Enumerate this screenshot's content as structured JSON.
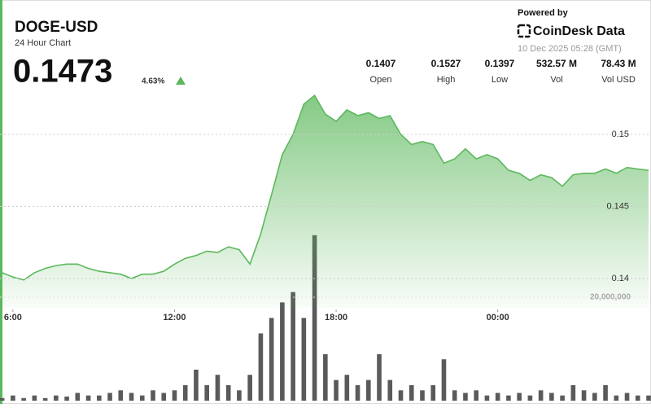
{
  "header": {
    "symbol": "DOGE-USD",
    "subtitle": "24 Hour Chart",
    "price": "0.1473",
    "change": "4.63%",
    "powered_by": "Powered by",
    "brand": "CoinDesk Data",
    "timestamp": "10 Dec 2025 05:28 (GMT)"
  },
  "stats": [
    {
      "value": "0.1407",
      "label": "Open"
    },
    {
      "value": "0.1527",
      "label": "High"
    },
    {
      "value": "0.1397",
      "label": "Low"
    },
    {
      "value": "532.57 M",
      "label": "Vol"
    },
    {
      "value": "78.43 M",
      "label": "Vol USD"
    }
  ],
  "chart_data": {
    "type": "area",
    "color": "#5cb85c",
    "x": [
      5.6,
      6.0,
      6.4,
      6.8,
      7.2,
      7.6,
      8.0,
      8.4,
      8.8,
      9.2,
      9.6,
      10.0,
      10.4,
      10.8,
      11.2,
      11.6,
      12.0,
      12.4,
      12.8,
      13.2,
      13.6,
      14.0,
      14.4,
      14.8,
      15.2,
      15.6,
      16.0,
      16.4,
      16.8,
      17.2,
      17.6,
      18.0,
      18.4,
      18.8,
      19.2,
      19.6,
      20.0,
      20.4,
      20.8,
      21.2,
      21.6,
      22.0,
      22.4,
      22.8,
      23.2,
      23.6,
      24.0,
      24.4,
      24.8,
      25.2,
      25.6,
      26.0,
      26.4,
      26.8,
      27.2,
      27.6,
      28.0,
      28.4,
      28.8,
      29.2,
      29.6
    ],
    "values": [
      0.1404,
      0.1401,
      0.1399,
      0.1404,
      0.1407,
      0.1409,
      0.141,
      0.141,
      0.1407,
      0.1405,
      0.1404,
      0.1403,
      0.14,
      0.1403,
      0.1403,
      0.1405,
      0.141,
      0.1414,
      0.1416,
      0.1419,
      0.1418,
      0.1422,
      0.142,
      0.141,
      0.1431,
      0.1458,
      0.1486,
      0.15,
      0.1521,
      0.1527,
      0.1514,
      0.1509,
      0.1517,
      0.1513,
      0.1515,
      0.1511,
      0.1513,
      0.15,
      0.1493,
      0.1495,
      0.1493,
      0.148,
      0.1483,
      0.149,
      0.1483,
      0.1486,
      0.1483,
      0.1475,
      0.1473,
      0.1468,
      0.1472,
      0.147,
      0.1464,
      0.1472,
      0.1473,
      0.1473,
      0.1476,
      0.1473,
      0.1477,
      0.1476,
      0.1475
    ],
    "xlim": [
      5.52,
      29.69
    ],
    "xticks": [
      {
        "value": 6,
        "label": "6:00"
      },
      {
        "value": 12,
        "label": "12:00"
      },
      {
        "value": 18,
        "label": "18:00"
      },
      {
        "value": 24,
        "label": "00:00"
      }
    ],
    "ylim": [
      0.138,
      0.1537
    ],
    "yticks": [
      0.14,
      0.145,
      0.15
    ],
    "grid": true,
    "volume": {
      "type": "bar",
      "color": "#5a5a5a",
      "values": [
        500000,
        1000000,
        500000,
        1000000,
        500000,
        1000000,
        800000,
        1500000,
        1000000,
        1000000,
        1500000,
        2000000,
        1500000,
        1000000,
        2000000,
        1500000,
        2000000,
        3000000,
        6000000,
        3000000,
        5000000,
        3000000,
        2000000,
        5000000,
        13000000,
        16000000,
        19000000,
        21000000,
        16000000,
        32000000,
        9000000,
        4000000,
        5000000,
        3000000,
        4000000,
        9000000,
        4000000,
        2000000,
        3000000,
        2000000,
        3000000,
        8000000,
        2000000,
        1500000,
        2000000,
        1000000,
        1500000,
        1000000,
        1500000,
        1000000,
        2000000,
        1500000,
        1000000,
        3000000,
        2000000,
        1500000,
        3000000,
        1000000,
        1500000,
        1000000,
        1000000
      ],
      "ylim": [
        0,
        40000000
      ],
      "yticks": [
        {
          "value": 20000000,
          "label": "20,000,000"
        }
      ]
    }
  }
}
